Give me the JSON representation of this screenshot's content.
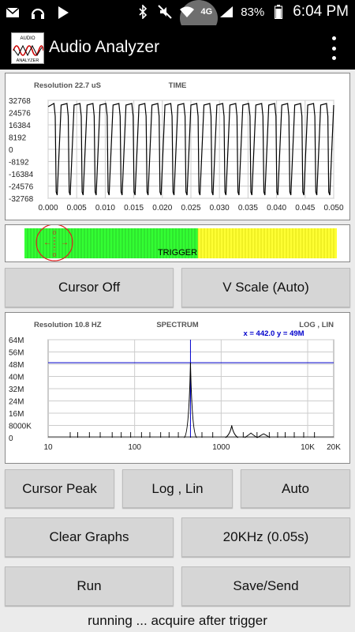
{
  "status_bar": {
    "battery": "83%",
    "time": "6:04 PM",
    "network": "4G"
  },
  "app": {
    "title": "Audio Analyzer",
    "logo_text_top": "AUDIO",
    "logo_text_bottom": "ANALYZER"
  },
  "time_graph": {
    "resolution": "Resolution 22.7 uS",
    "title": "TIME",
    "y_ticks": [
      "32768",
      "24576",
      "16384",
      "8192",
      "0",
      "-8192",
      "-16384",
      "-24576",
      "-32768"
    ],
    "x_ticks": [
      "0.000",
      "0.005",
      "0.010",
      "0.015",
      "0.020",
      "0.025",
      "0.030",
      "0.035",
      "0.040",
      "0.045",
      "0.050"
    ]
  },
  "trigger": {
    "label": "TRIGGER",
    "green_color": "#33ff33",
    "yellow_color": "#ffff33"
  },
  "buttons": {
    "cursor_off": "Cursor Off",
    "vscale": "V Scale (Auto)",
    "cursor_peak": "Cursor Peak",
    "log_lin": "Log , Lin",
    "auto": "Auto",
    "clear_graphs": "Clear Graphs",
    "range": "20KHz (0.05s)",
    "run": "Run",
    "save_send": "Save/Send"
  },
  "spectrum_graph": {
    "resolution": "Resolution 10.8 HZ",
    "title": "SPECTRUM",
    "mode": "LOG , LIN",
    "cursor_readout": "x = 442.0  y = 49M",
    "y_ticks": [
      "64M",
      "56M",
      "48M",
      "40M",
      "32M",
      "24M",
      "16M",
      "8000K",
      "0"
    ],
    "x_ticks": [
      "10",
      "100",
      "1000",
      "10K",
      "20K"
    ]
  },
  "status_message": "running ... acquire after trigger"
}
